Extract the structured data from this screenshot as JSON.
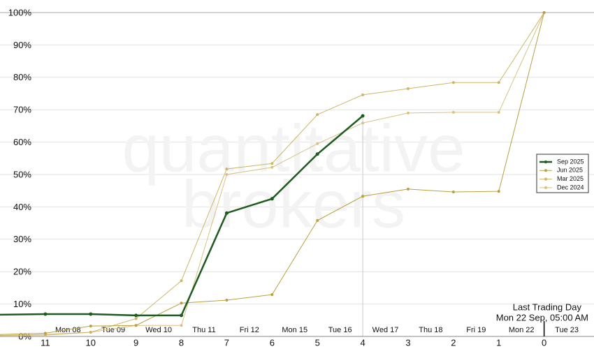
{
  "chart_data": {
    "type": "line",
    "watermark": [
      "quantitative",
      "brokers"
    ],
    "annotation": [
      "Last Trading Day",
      "Mon 22 Sep, 05:00 AM"
    ],
    "x": [
      12,
      11,
      10,
      9,
      8,
      7,
      6,
      5,
      4,
      3,
      2,
      1,
      0
    ],
    "xlim": [
      12,
      -1.1
    ],
    "xticks": [
      11,
      10,
      9,
      8,
      7,
      6,
      5,
      4,
      3,
      2,
      1,
      0
    ],
    "day_labels": [
      "Mon 08",
      "Tue 09",
      "Wed 10",
      "Thu 11",
      "Fri 12",
      "Mon 15",
      "Tue 16",
      "Wed 17",
      "Thu 18",
      "Fri 19",
      "Mon 22",
      "Tue 23"
    ],
    "current_x": 4,
    "ylim": [
      0,
      100
    ],
    "yticks": [
      {
        "value": 0,
        "label": "0%"
      },
      {
        "value": 10,
        "label": "10%"
      },
      {
        "value": 20,
        "label": "20%"
      },
      {
        "value": 30,
        "label": "30%"
      },
      {
        "value": 40,
        "label": "40%"
      },
      {
        "value": 50,
        "label": "50%"
      },
      {
        "value": 60,
        "label": "60%"
      },
      {
        "value": 70,
        "label": "70%"
      },
      {
        "value": 80,
        "label": "80%"
      },
      {
        "value": 90,
        "label": "90%"
      },
      {
        "value": 100,
        "label": "100%"
      }
    ],
    "grid": true,
    "legend": "right",
    "series": [
      {
        "name": "Sep 2025",
        "color": "#1f5a1f",
        "values": [
          6.7,
          6.9,
          6.9,
          6.5,
          6.5,
          38.1,
          42.5,
          56.3,
          68.1,
          null,
          null,
          null,
          null
        ]
      },
      {
        "name": "Jun 2025",
        "color": "#b9a040",
        "values": [
          0.6,
          1.0,
          3.2,
          3.4,
          10.3,
          11.2,
          12.9,
          35.8,
          43.3,
          45.5,
          44.6,
          44.8,
          100
        ]
      },
      {
        "name": "Mar 2025",
        "color": "#cdb565",
        "values": [
          0.3,
          0.6,
          1.3,
          5.5,
          17.2,
          51.7,
          53.4,
          68.5,
          74.6,
          76.5,
          78.4,
          78.4,
          100
        ]
      },
      {
        "name": "Dec 2024",
        "color": "#d8c283",
        "values": [
          0.3,
          0.4,
          1.3,
          3.4,
          3.4,
          50.0,
          52.2,
          59.5,
          65.9,
          69.0,
          69.2,
          69.2,
          100
        ]
      }
    ]
  }
}
